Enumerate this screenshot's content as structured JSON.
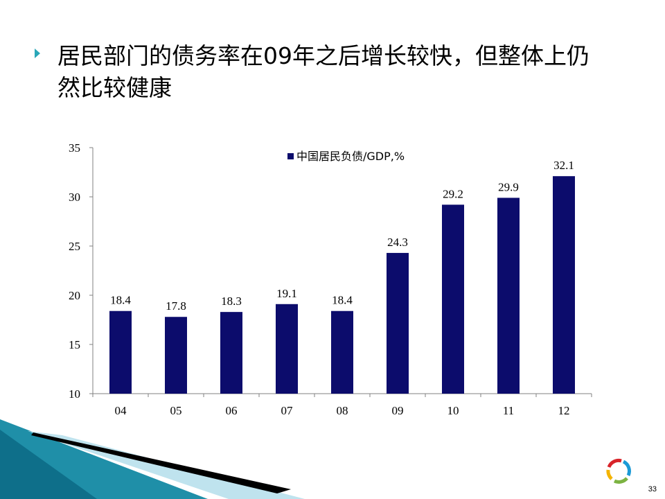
{
  "slide": {
    "title": "居民部门的债务率在09年之后增长较快，但整体上仍然比较健康",
    "page_number": "33"
  },
  "colors": {
    "bar": "#0c0c6c",
    "bullet": "#2aa7b8",
    "axis": "#808080",
    "decor_teal": "#1f8fa8",
    "decor_light": "#bfe3ee"
  },
  "icons": {
    "bullet": "triangle-bullet-icon",
    "logo": "ring-logo-icon"
  },
  "chart_data": {
    "type": "bar",
    "categories": [
      "04",
      "05",
      "06",
      "07",
      "08",
      "09",
      "10",
      "11",
      "12"
    ],
    "series": [
      {
        "name": "中国居民负债/GDP,%",
        "values": [
          18.4,
          17.8,
          18.3,
          19.1,
          18.4,
          24.3,
          29.2,
          29.9,
          32.1
        ]
      }
    ],
    "data_labels": [
      "18.4",
      "17.8",
      "18.3",
      "19.1",
      "18.4",
      "24.3",
      "29.2",
      "29.9",
      "32.1"
    ],
    "ylim": [
      10,
      35
    ],
    "yticks": [
      10,
      15,
      20,
      25,
      30,
      35
    ],
    "grid": false,
    "legend_position": "top-center"
  }
}
